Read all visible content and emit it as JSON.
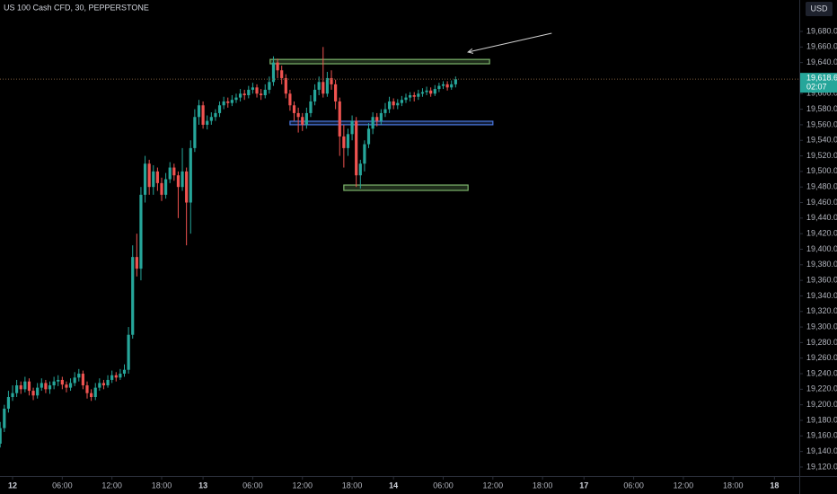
{
  "chart_data": {
    "type": "candlestick",
    "title": "US 100 Cash CFD, 30, PEPPERSTONE",
    "currency": "USD",
    "up_color": "#26a69a",
    "down_color": "#ef5350",
    "xlim": [
      -1.52,
      95
    ],
    "ylim": [
      19108.4,
      19720.4
    ],
    "xticks": [
      {
        "value": 0,
        "label": "12"
      },
      {
        "value": 6,
        "label": "06:00"
      },
      {
        "value": 12,
        "label": "12:00"
      },
      {
        "value": 18,
        "label": "18:00"
      },
      {
        "value": 23,
        "label": "13"
      },
      {
        "value": 29,
        "label": "06:00"
      },
      {
        "value": 35,
        "label": "12:00"
      },
      {
        "value": 41,
        "label": "18:00"
      },
      {
        "value": 46,
        "label": "14"
      },
      {
        "value": 52,
        "label": "06:00"
      },
      {
        "value": 58,
        "label": "12:00"
      },
      {
        "value": 64,
        "label": "18:00"
      },
      {
        "value": 69,
        "label": "17"
      },
      {
        "value": 75,
        "label": "06:00"
      },
      {
        "value": 81,
        "label": "12:00"
      },
      {
        "value": 87,
        "label": "18:00"
      },
      {
        "value": 92,
        "label": "18"
      }
    ],
    "yticks": [
      {
        "value": 19680,
        "label": "19,680.0"
      },
      {
        "value": 19660,
        "label": "19,660.0"
      },
      {
        "value": 19640,
        "label": "19,640.0"
      },
      {
        "value": 19600,
        "label": "19,600.0"
      },
      {
        "value": 19580,
        "label": "19,580.0"
      },
      {
        "value": 19560,
        "label": "19,560.0"
      },
      {
        "value": 19540,
        "label": "19,540.0"
      },
      {
        "value": 19520,
        "label": "19,520.0"
      },
      {
        "value": 19500,
        "label": "19,500.0"
      },
      {
        "value": 19480,
        "label": "19,480.0"
      },
      {
        "value": 19460,
        "label": "19,460.0"
      },
      {
        "value": 19440,
        "label": "19,440.0"
      },
      {
        "value": 19420,
        "label": "19,420.0"
      },
      {
        "value": 19400,
        "label": "19,400.0"
      },
      {
        "value": 19380,
        "label": "19,380.0"
      },
      {
        "value": 19360,
        "label": "19,360.0"
      },
      {
        "value": 19340,
        "label": "19,340.0"
      },
      {
        "value": 19320,
        "label": "19,320.0"
      },
      {
        "value": 19300,
        "label": "19,300.0"
      },
      {
        "value": 19280,
        "label": "19,280.0"
      },
      {
        "value": 19260,
        "label": "19,260.0"
      },
      {
        "value": 19240,
        "label": "19,240.0"
      },
      {
        "value": 19220,
        "label": "19,220.0"
      },
      {
        "value": 19200,
        "label": "19,200.0"
      },
      {
        "value": 19180,
        "label": "19,180.0"
      },
      {
        "value": 19160,
        "label": "19,160.0"
      },
      {
        "value": 19140,
        "label": "19,140.0"
      },
      {
        "value": 19120,
        "label": "19,120.0"
      }
    ],
    "last_price": {
      "value": 19618.6,
      "label": "19,618.6"
    },
    "countdown": "02:07",
    "x": [
      -1.5,
      -1,
      -0.5,
      0,
      0.5,
      1,
      1.5,
      2,
      2.5,
      3,
      3.5,
      4,
      4.5,
      5,
      5.5,
      6,
      6.5,
      7,
      7.5,
      8,
      8.5,
      9,
      9.5,
      10,
      10.5,
      11,
      11.5,
      12,
      12.5,
      13,
      13.5,
      14,
      14.5,
      15,
      15.5,
      16,
      16.5,
      17,
      17.5,
      18,
      18.5,
      19,
      19.5,
      20,
      20.5,
      21,
      21.5,
      22,
      22.5,
      23,
      23.5,
      24,
      24.5,
      25,
      25.5,
      26,
      26.5,
      27,
      27.5,
      28,
      28.5,
      29,
      29.5,
      30,
      30.5,
      31,
      31.5,
      32,
      32.5,
      33,
      33.5,
      34,
      34.5,
      35,
      35.5,
      36,
      36.5,
      37,
      37.5,
      38,
      38.5,
      39,
      39.5,
      40,
      40.5,
      41,
      41.5,
      42,
      42.5,
      43,
      43.5,
      44,
      44.5,
      45,
      45.5,
      46,
      46.5,
      47,
      47.5,
      48,
      48.5,
      49,
      49.5,
      50,
      50.5,
      51,
      51.5,
      52,
      52.5,
      53,
      53.5
    ],
    "open": [
      19150,
      19170,
      19195,
      19210,
      19215,
      19225,
      19220,
      19230,
      19218,
      19212,
      19222,
      19228,
      19220,
      19225,
      19230,
      19232,
      19226,
      19222,
      19228,
      19235,
      19240,
      19225,
      19215,
      19210,
      19222,
      19228,
      19225,
      19232,
      19238,
      19235,
      19240,
      19245,
      19290,
      19390,
      19375,
      19470,
      19510,
      19480,
      19500,
      19485,
      19470,
      19490,
      19505,
      19495,
      19480,
      19500,
      19460,
      19530,
      19570,
      19585,
      19560,
      19565,
      19570,
      19575,
      19585,
      19590,
      19588,
      19592,
      19595,
      19600,
      19598,
      19605,
      19608,
      19600,
      19598,
      19605,
      19615,
      19640,
      19630,
      19620,
      19600,
      19585,
      19575,
      19570,
      19560,
      19575,
      19590,
      19605,
      19615,
      19600,
      19620,
      19612,
      19590,
      19545,
      19530,
      19548,
      19565,
      19495,
      19510,
      19535,
      19555,
      19570,
      19565,
      19575,
      19580,
      19590,
      19585,
      19588,
      19592,
      19595,
      19598,
      19596,
      19600,
      19602,
      19604,
      19600,
      19606,
      19610,
      19612,
      19608,
      19612
    ],
    "high": [
      19178,
      19200,
      19218,
      19225,
      19232,
      19230,
      19236,
      19234,
      19222,
      19228,
      19234,
      19232,
      19230,
      19236,
      19238,
      19236,
      19230,
      19234,
      19242,
      19246,
      19244,
      19230,
      19220,
      19228,
      19234,
      19232,
      19238,
      19244,
      19242,
      19246,
      19252,
      19300,
      19405,
      19420,
      19480,
      19520,
      19515,
      19508,
      19505,
      19492,
      19498,
      19512,
      19510,
      19500,
      19530,
      19505,
      19540,
      19580,
      19592,
      19590,
      19572,
      19576,
      19580,
      19590,
      19596,
      19595,
      19598,
      19600,
      19606,
      19605,
      19610,
      19614,
      19612,
      19606,
      19612,
      19622,
      19648,
      19645,
      19636,
      19625,
      19605,
      19590,
      19582,
      19575,
      19582,
      19598,
      19612,
      19622,
      19660,
      19628,
      19630,
      19618,
      19595,
      19560,
      19555,
      19572,
      19570,
      19515,
      19540,
      19562,
      19576,
      19575,
      19580,
      19588,
      19596,
      19594,
      19593,
      19597,
      19600,
      19602,
      19602,
      19605,
      19607,
      19609,
      19608,
      19611,
      19614,
      19616,
      19616,
      19617,
      19622
    ],
    "low": [
      19145,
      19165,
      19190,
      19205,
      19210,
      19214,
      19216,
      19212,
      19206,
      19208,
      19218,
      19215,
      19214,
      19220,
      19224,
      19220,
      19216,
      19218,
      19224,
      19230,
      19220,
      19208,
      19205,
      19206,
      19218,
      19220,
      19222,
      19228,
      19230,
      19232,
      19236,
      19240,
      19285,
      19365,
      19360,
      19460,
      19470,
      19470,
      19475,
      19462,
      19465,
      19485,
      19488,
      19440,
      19475,
      19405,
      19420,
      19525,
      19560,
      19555,
      19554,
      19560,
      19565,
      19570,
      19580,
      19582,
      19584,
      19588,
      19590,
      19592,
      19594,
      19600,
      19595,
      19592,
      19594,
      19600,
      19610,
      19620,
      19612,
      19594,
      19578,
      19565,
      19550,
      19552,
      19555,
      19570,
      19585,
      19598,
      19595,
      19596,
      19605,
      19580,
      19520,
      19505,
      19520,
      19540,
      19480,
      19478,
      19500,
      19530,
      19548,
      19558,
      19560,
      19570,
      19575,
      19580,
      19580,
      19584,
      19588,
      19590,
      19590,
      19592,
      19596,
      19598,
      19596,
      19597,
      19602,
      19606,
      19604,
      19605,
      19608
    ],
    "close": [
      19170,
      19195,
      19210,
      19215,
      19225,
      19220,
      19230,
      19218,
      19212,
      19222,
      19228,
      19220,
      19225,
      19230,
      19232,
      19226,
      19222,
      19228,
      19235,
      19240,
      19225,
      19215,
      19210,
      19222,
      19228,
      19225,
      19232,
      19238,
      19235,
      19240,
      19245,
      19290,
      19390,
      19375,
      19470,
      19510,
      19480,
      19500,
      19485,
      19470,
      19490,
      19505,
      19495,
      19480,
      19500,
      19460,
      19530,
      19570,
      19585,
      19560,
      19565,
      19570,
      19575,
      19585,
      19590,
      19588,
      19592,
      19595,
      19600,
      19598,
      19605,
      19608,
      19600,
      19598,
      19605,
      19615,
      19640,
      19630,
      19620,
      19600,
      19585,
      19575,
      19570,
      19560,
      19575,
      19590,
      19605,
      19615,
      19600,
      19620,
      19612,
      19590,
      19545,
      19530,
      19548,
      19565,
      19495,
      19510,
      19535,
      19555,
      19570,
      19565,
      19575,
      19580,
      19590,
      19585,
      19588,
      19592,
      19595,
      19598,
      19596,
      19600,
      19602,
      19604,
      19600,
      19606,
      19610,
      19612,
      19608,
      19612,
      19618.6
    ],
    "zones": [
      {
        "x": [
          31.1,
          57.6
        ],
        "y": [
          19644,
          19638.4
        ],
        "color": "#7cb46b"
      },
      {
        "x": [
          33.5,
          58
        ],
        "y": [
          19564.5,
          19560
        ],
        "color": "#4a78e0"
      },
      {
        "x": [
          40,
          55
        ],
        "y": [
          19482.5,
          19475.6
        ],
        "color": "#7cb46b"
      }
    ],
    "arrow": {
      "x": [
        65.1,
        55
      ],
      "y": [
        19677.7,
        19653.4
      ],
      "color": "#d0d0d0"
    }
  }
}
